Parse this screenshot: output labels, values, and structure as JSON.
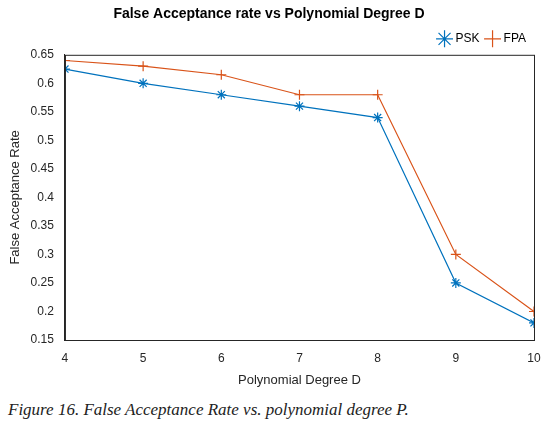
{
  "chart_data": {
    "type": "line",
    "title": "False Acceptance rate vs Polynomial Degree D",
    "caption": "Figure 16. False Acceptance Rate vs. polynomial degree P.",
    "x_label": "Polynomial Degree D",
    "y_label": "False Acceptance Rate",
    "x": [
      4,
      5,
      6,
      7,
      8,
      9,
      10
    ],
    "series": [
      {
        "name": "PSK",
        "color": "#0072bd",
        "marker": "star",
        "values": [
          0.625,
          0.6,
          0.58,
          0.56,
          0.54,
          0.25,
          0.18
        ]
      },
      {
        "name": "FPA",
        "color": "#d95319",
        "marker": "plus",
        "values": [
          0.64,
          0.63,
          0.615,
          0.58,
          0.58,
          0.3,
          0.2
        ]
      }
    ],
    "xlim": [
      4,
      10
    ],
    "xticks": [
      4,
      5,
      6,
      7,
      8,
      9,
      10
    ],
    "ylim": [
      0.15,
      0.65
    ],
    "yticks": [
      0.15,
      0.2,
      0.25,
      0.3,
      0.35,
      0.4,
      0.45,
      0.5,
      0.55,
      0.6,
      0.65
    ],
    "grid": false,
    "legend": "top-right"
  }
}
